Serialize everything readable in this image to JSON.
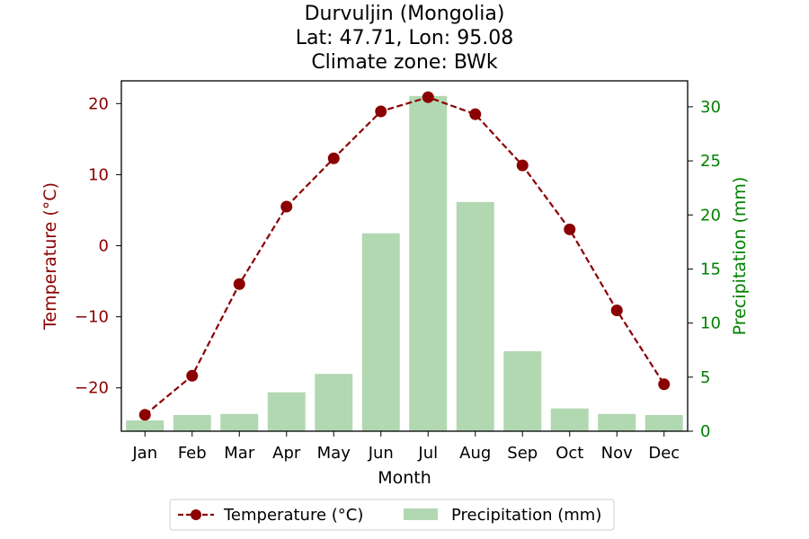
{
  "title_lines": [
    "Durvuljin (Mongolia)",
    "Lat: 47.71, Lon: 95.08",
    "Climate zone: BWk"
  ],
  "colors": {
    "temperature": "#8b0000",
    "precipitation": "#b2d8b2",
    "precip_axis": "#008000"
  },
  "chart_data": {
    "type": "bar",
    "categories": [
      "Jan",
      "Feb",
      "Mar",
      "Apr",
      "May",
      "Jun",
      "Jul",
      "Aug",
      "Sep",
      "Oct",
      "Nov",
      "Dec"
    ],
    "xlabel": "Month",
    "ylabel_left": "Temperature (°C)",
    "ylabel_right": "Precipitation (mm)",
    "ylim_left": [
      -26.1,
      23.2
    ],
    "ylim_right": [
      0,
      32.4
    ],
    "yticks_left": [
      -20,
      -10,
      0,
      10,
      20
    ],
    "yticks_right": [
      0,
      5,
      10,
      15,
      20,
      25,
      30
    ],
    "series": [
      {
        "name": "Temperature (°C)",
        "kind": "line",
        "axis": "left",
        "values": [
          -23.8,
          -18.3,
          -5.4,
          5.5,
          12.3,
          18.9,
          20.9,
          18.5,
          11.3,
          2.3,
          -9.1,
          -19.5
        ]
      },
      {
        "name": "Precipitation (mm)",
        "kind": "bar",
        "axis": "right",
        "values": [
          1.0,
          1.5,
          1.6,
          3.6,
          5.3,
          18.3,
          31.0,
          21.2,
          7.4,
          2.1,
          1.6,
          1.5
        ]
      }
    ],
    "legend_position": "bottom-center",
    "grid": false
  }
}
